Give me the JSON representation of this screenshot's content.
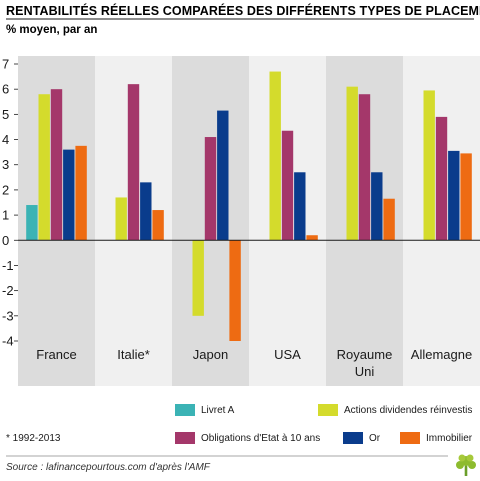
{
  "chart_data": {
    "type": "bar",
    "title": "RENTABILITÉS RÉELLES COMPARÉES DES DIFFÉRENTS TYPES DE PLACEMENTS",
    "subtitle": "% moyen, par an",
    "categories": [
      "France",
      "Italie*",
      "Japon",
      "USA",
      "Royaume Uni",
      "Allemagne"
    ],
    "ylim": [
      -4,
      7
    ],
    "yticks": [
      -4,
      -3,
      -2,
      -1,
      0,
      1,
      2,
      3,
      4,
      5,
      6,
      7
    ],
    "ytick_labels": [
      "-4",
      "-3",
      "-2",
      "-1",
      "0",
      "1",
      "2",
      "3",
      "4",
      "5",
      "6",
      "7"
    ],
    "series": [
      {
        "name": "Livret A",
        "color": "#3bb3b5",
        "values": [
          1.4,
          null,
          null,
          null,
          null,
          null
        ]
      },
      {
        "name": "Actions dividendes réinvestis",
        "color": "#d4db2c",
        "values": [
          5.8,
          1.7,
          -3.0,
          6.7,
          6.1,
          5.95
        ]
      },
      {
        "name": "Obligations d'Etat à 10 ans",
        "color": "#a4376a",
        "values": [
          6.0,
          6.2,
          4.1,
          4.35,
          5.8,
          4.9
        ]
      },
      {
        "name": "Or",
        "color": "#0a3c8c",
        "values": [
          3.6,
          2.3,
          5.15,
          2.7,
          2.7,
          3.55
        ]
      },
      {
        "name": "Immobilier",
        "color": "#ee6b12",
        "values": [
          3.75,
          1.2,
          -4.0,
          0.2,
          1.65,
          3.45
        ]
      }
    ],
    "grid": false,
    "legend_position": "bottom"
  },
  "footnote": "* 1992-2013",
  "source": "Source : lafinancepourtous.com d'après l'AMF",
  "logo": "tree-logo"
}
